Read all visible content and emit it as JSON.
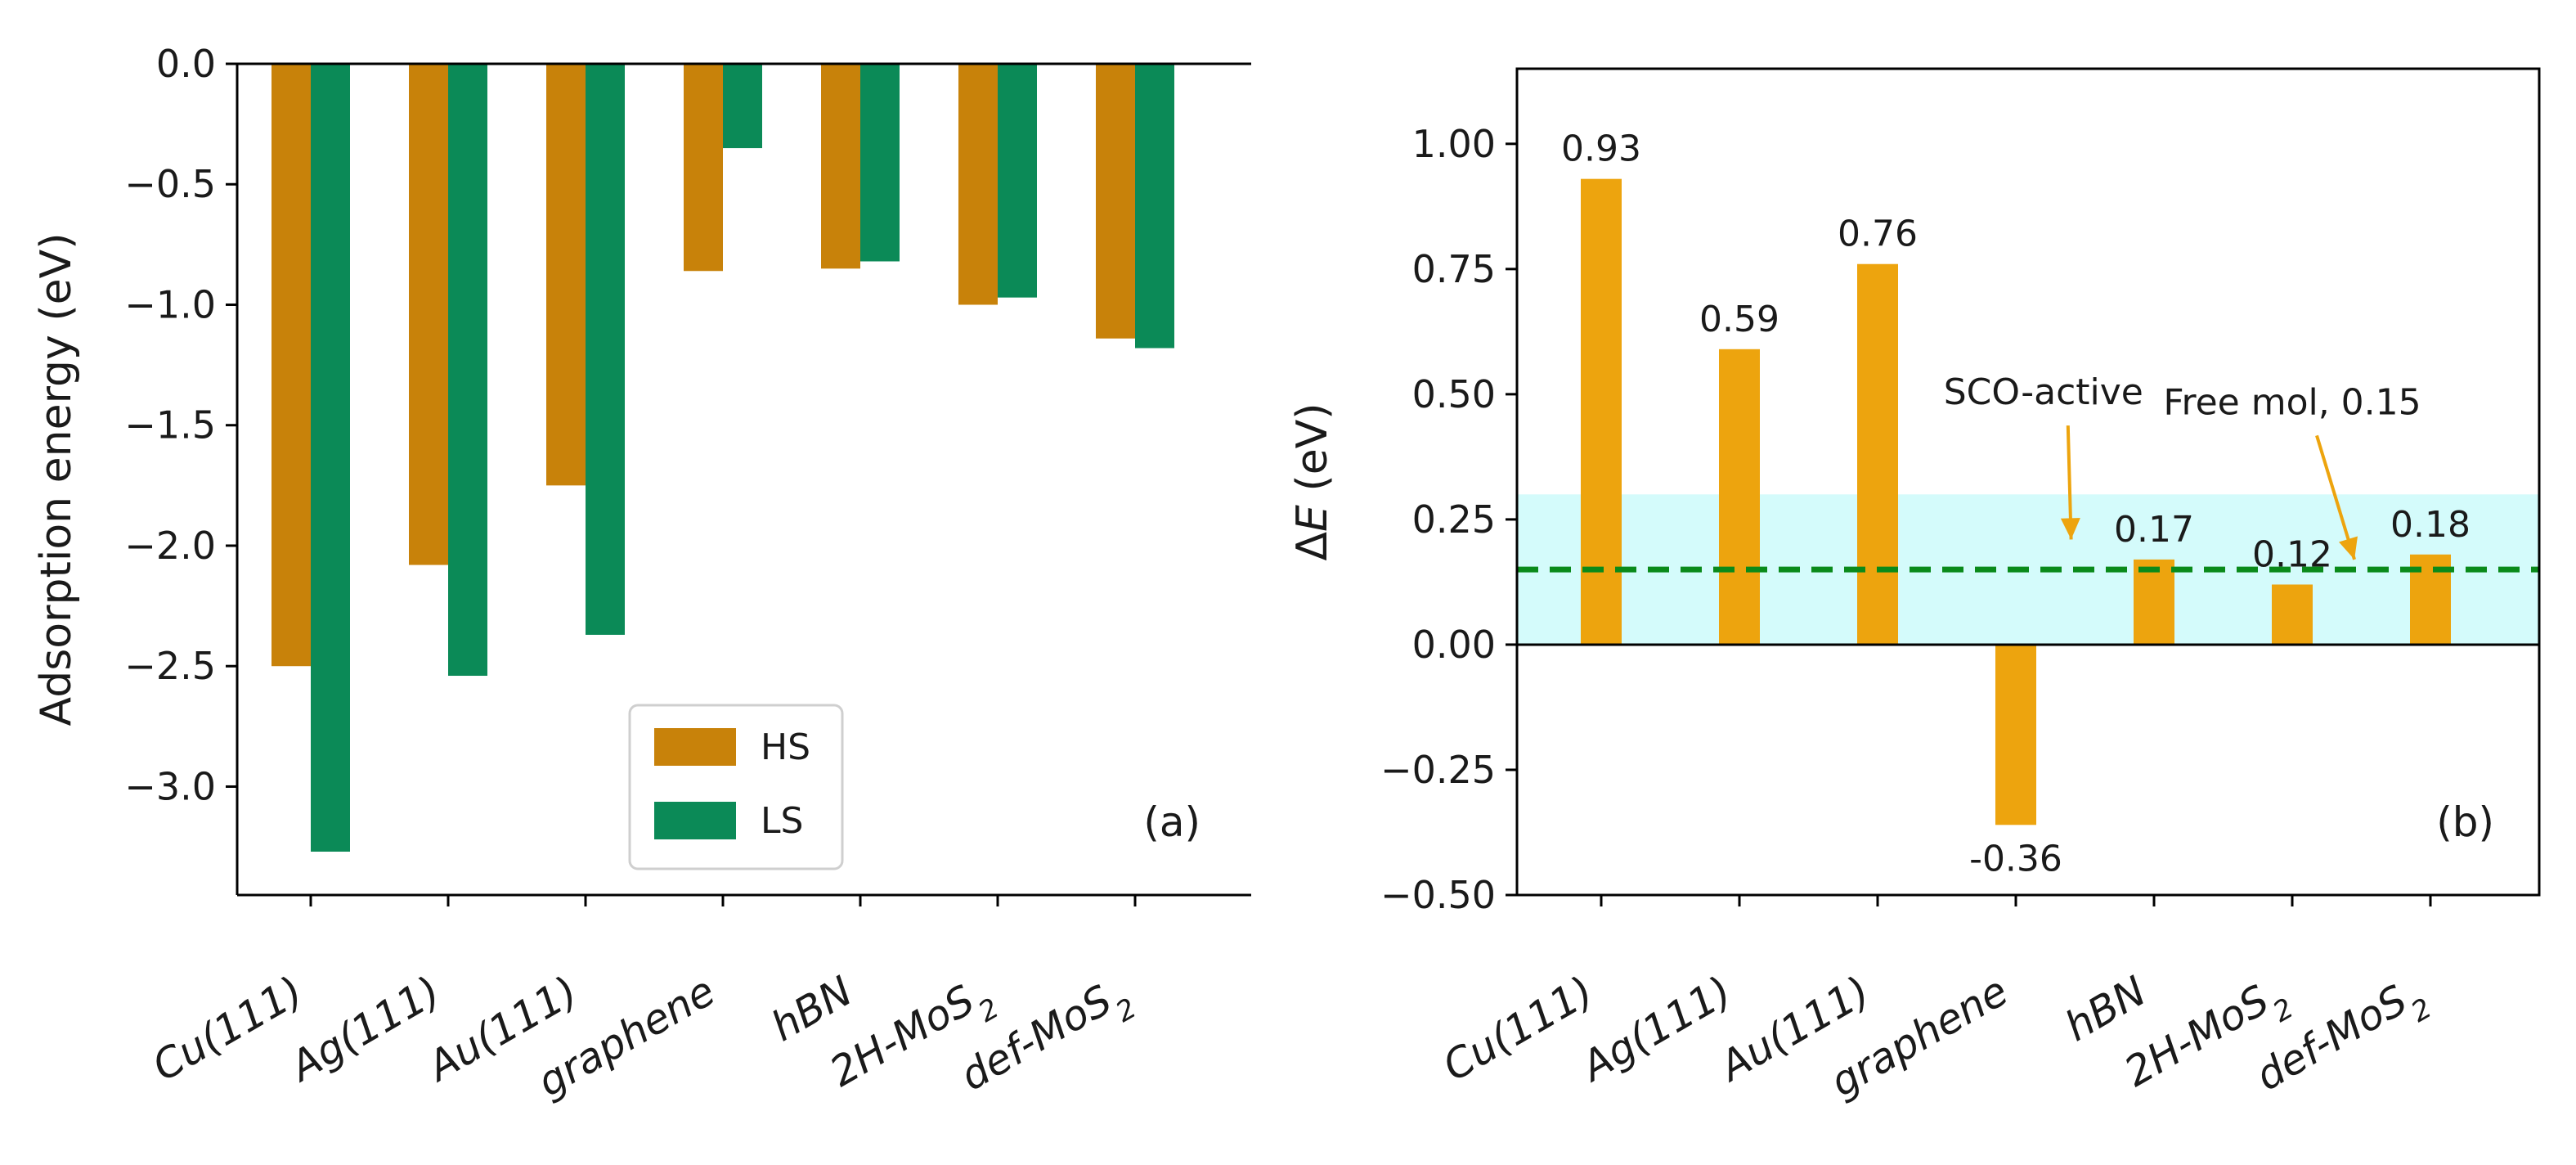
{
  "chart_data": [
    {
      "type": "bar",
      "panel": "(a)",
      "title": "",
      "xlabel": "",
      "ylabel": "Adsorption energy (eV)",
      "ylim": [
        -3.45,
        0.0
      ],
      "yticks": [
        0.0,
        -0.5,
        -1.0,
        -1.5,
        -2.0,
        -2.5,
        -3.0
      ],
      "ytick_labels": [
        "0.0",
        "−0.5",
        "−1.0",
        "−1.5",
        "−2.0",
        "−2.5",
        "−3.0"
      ],
      "categories": [
        {
          "main": "Cu(111)",
          "sub": ""
        },
        {
          "main": "Ag(111)",
          "sub": ""
        },
        {
          "main": "Au(111)",
          "sub": ""
        },
        {
          "main": "graphene",
          "sub": ""
        },
        {
          "main": "hBN",
          "sub": ""
        },
        {
          "main": "2H-MoS",
          "sub": "2"
        },
        {
          "main": "def-MoS",
          "sub": "2"
        }
      ],
      "series": [
        {
          "name": "HS",
          "color": "#c8820a",
          "values": [
            -2.5,
            -2.08,
            -1.75,
            -0.86,
            -0.85,
            -1.0,
            -1.14
          ]
        },
        {
          "name": "LS",
          "color": "#0b8a57",
          "values": [
            -3.27,
            -2.54,
            -2.37,
            -0.35,
            -0.82,
            -0.97,
            -1.18
          ]
        }
      ],
      "legend": {
        "position": "lower-center",
        "entries": [
          "HS",
          "LS"
        ]
      }
    },
    {
      "type": "bar",
      "panel": "(b)",
      "title": "",
      "xlabel": "",
      "ylabel_prefix": "Δ",
      "ylabel_var": "E",
      "ylabel_suffix": " (eV)",
      "ylim": [
        -0.5,
        1.15
      ],
      "yticks": [
        1.0,
        0.75,
        0.5,
        0.25,
        0.0,
        -0.25,
        -0.5
      ],
      "ytick_labels": [
        "1.00",
        "0.75",
        "0.50",
        "0.25",
        "0.00",
        "−0.25",
        "−0.50"
      ],
      "categories": [
        {
          "main": "Cu(111)",
          "sub": ""
        },
        {
          "main": "Ag(111)",
          "sub": ""
        },
        {
          "main": "Au(111)",
          "sub": ""
        },
        {
          "main": "graphene",
          "sub": ""
        },
        {
          "main": "hBN",
          "sub": ""
        },
        {
          "main": "2H-MoS",
          "sub": "2"
        },
        {
          "main": "def-MoS",
          "sub": "2"
        }
      ],
      "series": [
        {
          "name": "ΔE",
          "color": "#eda40e",
          "values": [
            0.93,
            0.59,
            0.76,
            -0.36,
            0.17,
            0.12,
            0.18
          ]
        }
      ],
      "data_labels": [
        "0.93",
        "0.59",
        "0.76",
        "-0.36",
        "0.17",
        "0.12",
        "0.18"
      ],
      "shaded_band": {
        "y_from": 0.0,
        "y_to": 0.3,
        "color": "#d4fbfb"
      },
      "reference_line": {
        "y": 0.15,
        "style": "dashed",
        "color": "#0a8a1a"
      },
      "annotations": [
        {
          "text": "SCO-active",
          "points_to": {
            "category_index": 3.4,
            "y": 0.21
          },
          "text_at": {
            "category_index": 3.2,
            "y": 0.48
          }
        },
        {
          "text": "Free mol, 0.15",
          "points_to": {
            "category_index": 5.45,
            "y": 0.17
          },
          "text_at": {
            "category_index": 5.0,
            "y": 0.46
          }
        }
      ]
    }
  ]
}
